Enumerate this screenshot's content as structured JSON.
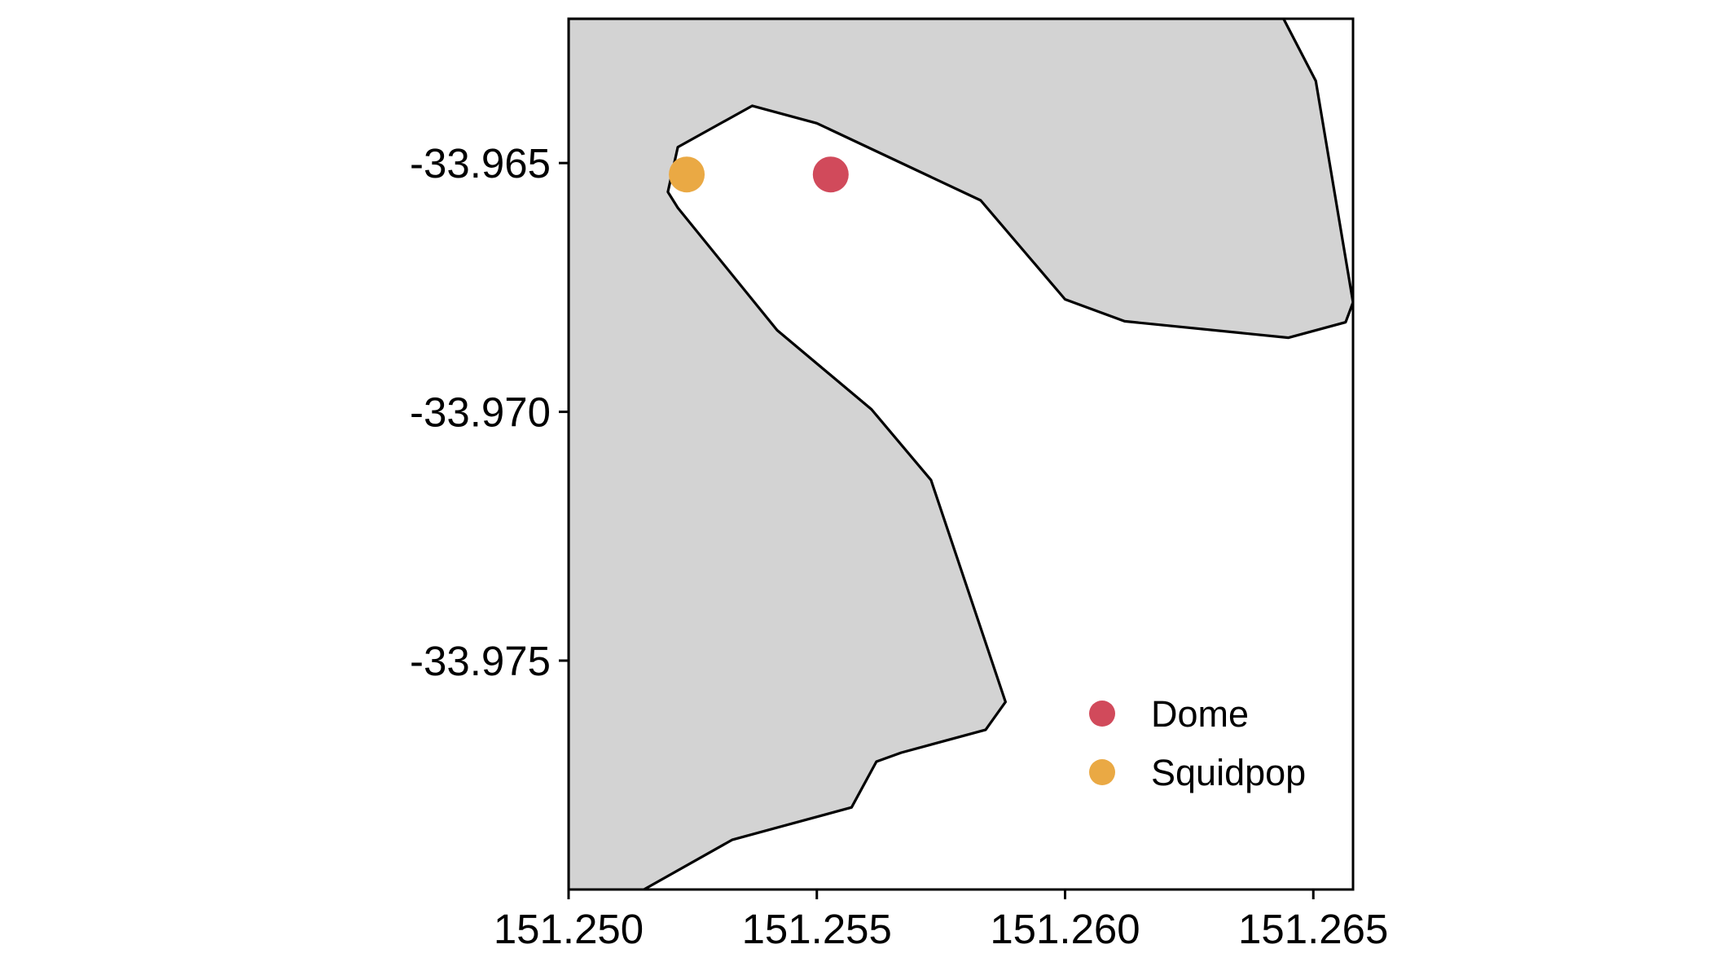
{
  "map": {
    "extent": {
      "lon": [
        151.25,
        151.2658
      ],
      "lat": [
        -33.9796,
        -33.9621
      ]
    },
    "land_color": "#d3d3d3",
    "water_color": "#ffffff",
    "coastline_color": "#000000",
    "land_polygon": [
      [
        151.25,
        -33.9621
      ],
      [
        151.2644,
        -33.9621
      ],
      [
        151.26505,
        -33.96335
      ],
      [
        151.2658,
        -33.9678
      ],
      [
        151.26565,
        -33.9682
      ],
      [
        151.2645,
        -33.96851
      ],
      [
        151.2612,
        -33.96818
      ],
      [
        151.26,
        -33.96774
      ],
      [
        151.2583,
        -33.96575
      ],
      [
        151.255,
        -33.9642
      ],
      [
        151.2537,
        -33.96385
      ],
      [
        151.2522,
        -33.96468
      ],
      [
        151.252,
        -33.96558
      ],
      [
        151.2522,
        -33.9659
      ],
      [
        151.2542,
        -33.96836
      ],
      [
        151.2561,
        -33.96995
      ],
      [
        151.2573,
        -33.97137
      ],
      [
        151.2588,
        -33.97583
      ],
      [
        151.2584,
        -33.97639
      ],
      [
        151.2567,
        -33.97685
      ],
      [
        151.2562,
        -33.97703
      ],
      [
        151.2557,
        -33.97795
      ],
      [
        151.2533,
        -33.9786
      ],
      [
        151.2515,
        -33.97961
      ],
      [
        151.2515,
        -33.9801
      ],
      [
        151.25,
        -33.9801
      ]
    ],
    "points": [
      {
        "name": "Squidpop",
        "lon": 151.25238,
        "lat": -33.96523,
        "color": "#eaa944"
      },
      {
        "name": "Dome",
        "lon": 151.25528,
        "lat": -33.96523,
        "color": "#d14a5b"
      }
    ]
  },
  "axes": {
    "x_ticks": [
      151.25,
      151.255,
      151.26,
      151.265
    ],
    "x_tick_labels": [
      "151.250",
      "151.255",
      "151.260",
      "151.265"
    ],
    "y_ticks": [
      -33.965,
      -33.97,
      -33.975
    ],
    "y_tick_labels": [
      "-33.965",
      "-33.970",
      "-33.975"
    ]
  },
  "legend": {
    "placement": "bottom-right inside panel",
    "items": [
      {
        "label": "Dome",
        "color": "#d14a5b"
      },
      {
        "label": "Squidpop",
        "color": "#eaa944"
      }
    ]
  }
}
